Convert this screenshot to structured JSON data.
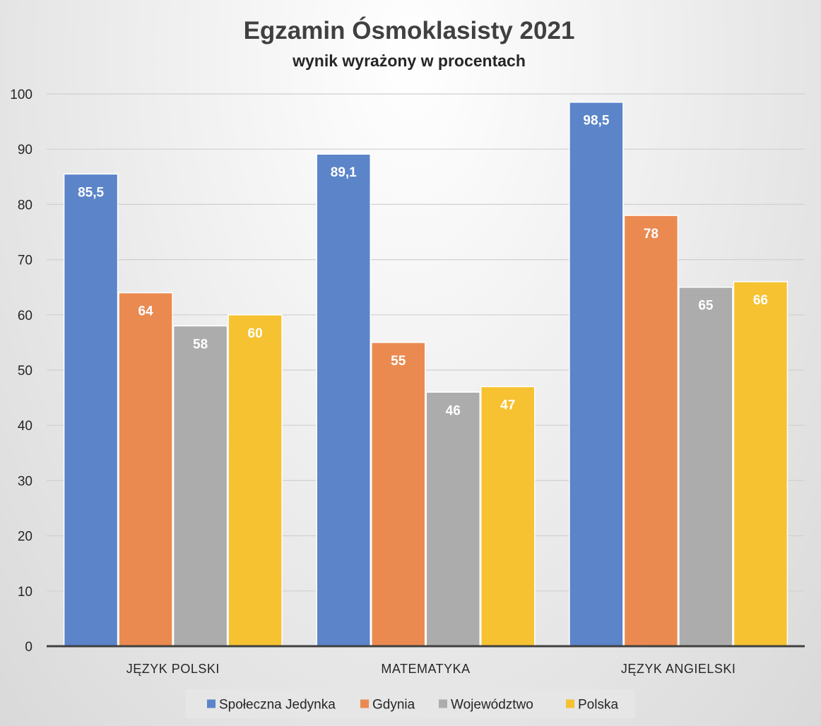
{
  "chart_data": {
    "type": "bar",
    "title": "Egzamin Ósmoklasisty 2021",
    "subtitle": "wynik wyrażony w procentach",
    "xlabel": "",
    "ylabel": "",
    "categories": [
      "JĘZYK POLSKI",
      "MATEMATYKA",
      "JĘZYK ANGIELSKI"
    ],
    "series": [
      {
        "name": "Społeczna Jedynka",
        "color": "#5b84c9",
        "values": [
          85.5,
          89.1,
          98.5
        ],
        "labels": [
          "85,5",
          "89,1",
          "98,5"
        ]
      },
      {
        "name": "Gdynia",
        "color": "#ea8a51",
        "values": [
          64,
          55,
          78
        ],
        "labels": [
          "64",
          "55",
          "78"
        ]
      },
      {
        "name": "Województwo",
        "color": "#acacac",
        "values": [
          58,
          46,
          65
        ],
        "labels": [
          "58",
          "46",
          "65"
        ]
      },
      {
        "name": "Polska",
        "color": "#f6c231",
        "values": [
          60,
          47,
          66
        ],
        "labels": [
          "60",
          "47",
          "66"
        ]
      }
    ],
    "ylim": [
      0,
      100
    ],
    "yticks": [
      "0",
      "10",
      "20",
      "30",
      "40",
      "50",
      "60",
      "70",
      "80",
      "90",
      "100"
    ],
    "grid": true,
    "legend_position": "bottom"
  }
}
